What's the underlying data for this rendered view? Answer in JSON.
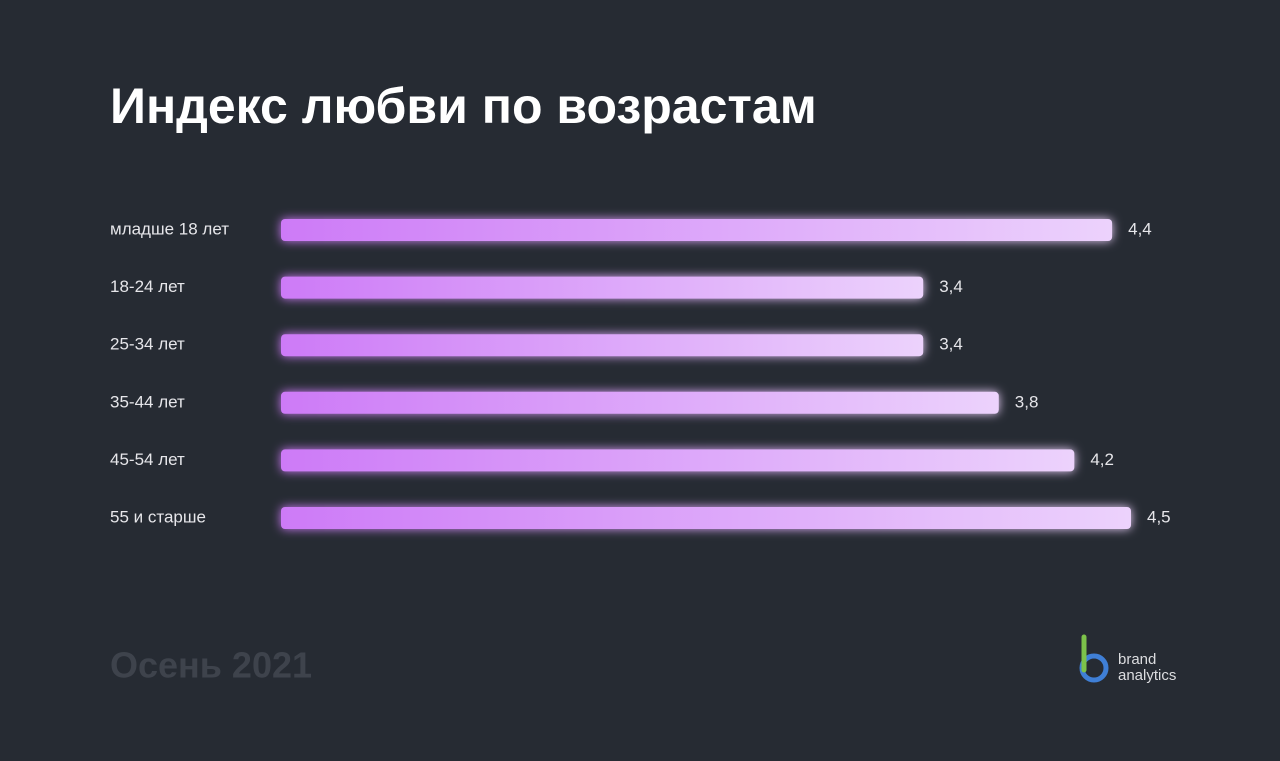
{
  "chart_data": {
    "type": "hbar",
    "title": "Индекс любви  по возрастам",
    "categories": [
      "младше 18 лет",
      "18-24 лет",
      "25-34 лет",
      "35-44 лет",
      "45-54 лет",
      "55 и старше"
    ],
    "values": [
      4.4,
      3.4,
      3.4,
      3.8,
      4.2,
      4.5
    ],
    "value_labels": [
      "4,4",
      "3,4",
      "3,4",
      "3,8",
      "4,2",
      "4,5"
    ],
    "color": "#cd7af7",
    "footer": "Осень 2021",
    "logo": [
      "brand",
      "analytics"
    ]
  }
}
